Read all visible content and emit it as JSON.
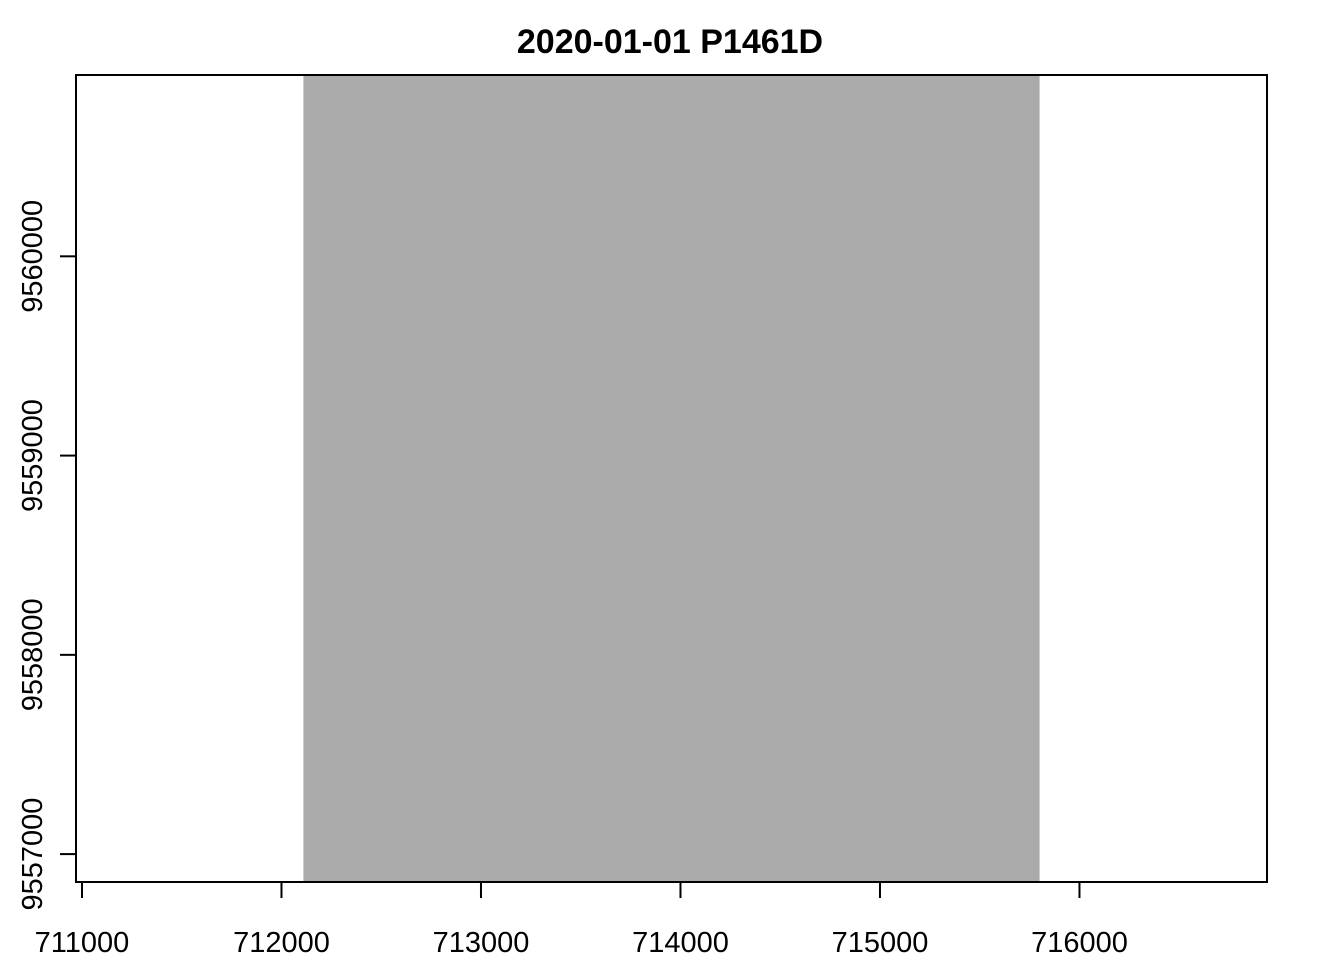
{
  "chart_data": {
    "type": "heatmap",
    "title": "2020-01-01 P1461D",
    "xlabel": "",
    "ylabel": "",
    "xlim": [
      710970,
      716940
    ],
    "ylim": [
      9556860,
      9560910
    ],
    "x_ticks": [
      711000,
      712000,
      713000,
      714000,
      715000,
      716000
    ],
    "x_tick_labels": [
      "711000",
      "712000",
      "713000",
      "714000",
      "715000",
      "716000"
    ],
    "y_ticks": [
      9557000,
      9558000,
      9559000,
      9560000
    ],
    "y_tick_labels": [
      "9557000",
      "9558000",
      "9559000",
      "9560000"
    ],
    "raster": {
      "xmin": 712110,
      "xmax": 715800,
      "ymin": 9556860,
      "ymax": 9560910,
      "fill": "#aaaaaa"
    },
    "background": "#ffffff",
    "grid": false,
    "legend": false
  }
}
